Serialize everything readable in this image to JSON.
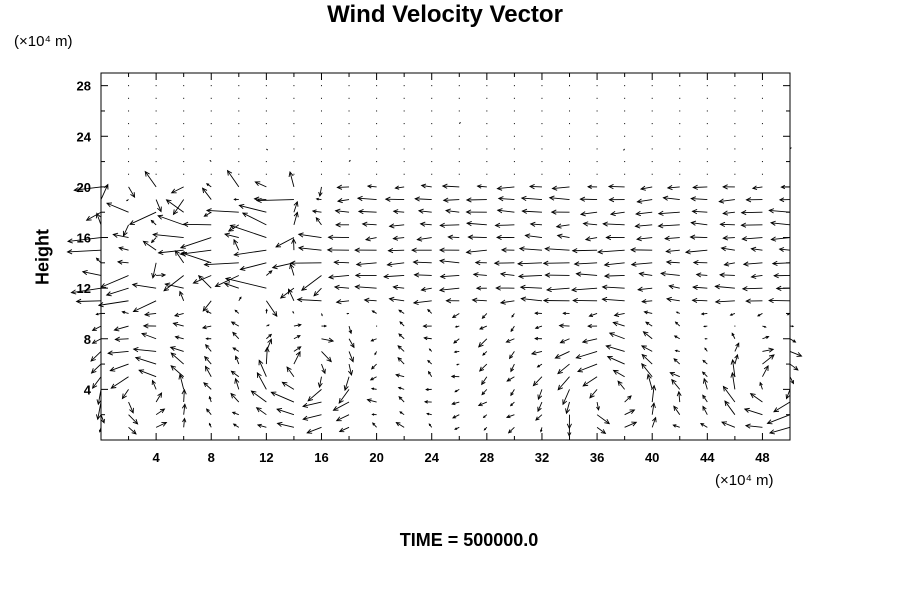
{
  "title": "Wind Velocity Vector",
  "y_unit_label": "(×10⁴ m)",
  "x_unit_label": "(×10⁴ m)",
  "time_label": "TIME = 500000.0",
  "colors": {
    "axes": "#000000",
    "vectors": "#000000",
    "background": "#ffffff"
  },
  "chart_data": {
    "type": "vector-field",
    "title": "Wind Velocity Vector",
    "xlabel": "",
    "ylabel": "Height",
    "x_unit": "(×10⁴ m)",
    "y_unit": "(×10⁴ m)",
    "xlim": [
      0,
      50
    ],
    "ylim": [
      0,
      29
    ],
    "x_ticks": [
      4,
      8,
      12,
      16,
      20,
      24,
      28,
      32,
      36,
      40,
      44,
      48
    ],
    "y_ticks": [
      4,
      8,
      12,
      16,
      20,
      24,
      28
    ],
    "grid": {
      "dx": 2,
      "dy": 1
    },
    "regimes": [
      {
        "height_range": [
          20,
          29
        ],
        "description": "near-calm, sparse small dots"
      },
      {
        "height_range": [
          11,
          20
        ],
        "description": "mostly westward flow with turbulent eddies near x=2-16"
      },
      {
        "height_range": [
          0,
          11
        ],
        "description": "convective rolls centered near x≈3, 15, 37, 49"
      }
    ],
    "roll_centers": [
      {
        "x": 3,
        "y": 4,
        "rotation": "counterclockwise"
      },
      {
        "x": 15,
        "y": 5,
        "rotation": "clockwise"
      },
      {
        "x": 37,
        "y": 4,
        "rotation": "counterclockwise"
      },
      {
        "x": 49,
        "y": 4,
        "rotation": "clockwise"
      }
    ],
    "time": 500000.0
  }
}
